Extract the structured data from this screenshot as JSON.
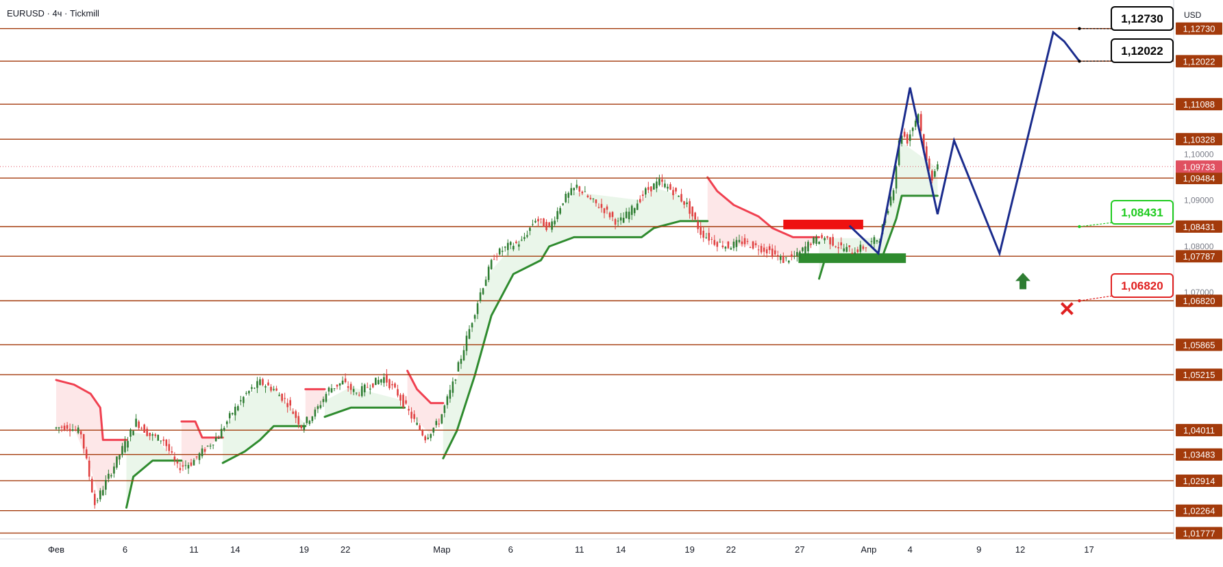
{
  "header": {
    "title": "EURUSD · 4ч · Tickmill"
  },
  "currency": "USD",
  "colors": {
    "level_line": "#a33a0b",
    "level_tag": "#a33a0b",
    "bull_candle": "#2e7d32",
    "bear_candle": "#e04040",
    "supertrend_up": "#2e8b2e",
    "supertrend_down": "#f04050",
    "up_fill": "#e8f5e8",
    "down_fill": "#fde4e6",
    "forecast": "#1a2b8c",
    "current_price_tag": "#e05060",
    "target_green": "#1ecb1e",
    "target_red": "#e02020",
    "arrow_up": "#2e7d32",
    "resistance_zone": "#ee1111",
    "support_zone": "#2e8b2e"
  },
  "chart_data": {
    "type": "candlestick",
    "symbol": "EURUSD",
    "timeframe": "4ч",
    "broker": "Tickmill",
    "ylim": [
      1.0165,
      1.1335
    ],
    "y_ticks": [
      "1,07000",
      "1,08000",
      "1,09000",
      "1,10000"
    ],
    "x_ticks": [
      {
        "label": "Фев",
        "day": 0
      },
      {
        "label": "6",
        "day": 5
      },
      {
        "label": "11",
        "day": 10
      },
      {
        "label": "14",
        "day": 13
      },
      {
        "label": "19",
        "day": 18
      },
      {
        "label": "22",
        "day": 21
      },
      {
        "label": "Мар",
        "day": 28
      },
      {
        "label": "6",
        "day": 33
      },
      {
        "label": "11",
        "day": 38
      },
      {
        "label": "14",
        "day": 41
      },
      {
        "label": "19",
        "day": 46
      },
      {
        "label": "22",
        "day": 49
      },
      {
        "label": "27",
        "day": 54
      },
      {
        "label": "Апр",
        "day": 59
      },
      {
        "label": "4",
        "day": 62
      },
      {
        "label": "9",
        "day": 67
      },
      {
        "label": "12",
        "day": 70
      },
      {
        "label": "17",
        "day": 75
      }
    ],
    "levels": [
      "1,12730",
      "1,12022",
      "1,11088",
      "1,10328",
      "1,09484",
      "1,08431",
      "1,07787",
      "1,06820",
      "1,05865",
      "1,05215",
      "1,04011",
      "1,03483",
      "1,02914",
      "1,02264",
      "1,01777"
    ],
    "current_price": "1,09733",
    "close_path": [
      [
        0,
        1.0405
      ],
      [
        1,
        1.041
      ],
      [
        2,
        1.0395
      ],
      [
        3,
        1.024
      ],
      [
        4,
        1.03
      ],
      [
        5,
        1.036
      ],
      [
        6,
        1.042
      ],
      [
        7,
        1.039
      ],
      [
        8,
        1.038
      ],
      [
        9,
        1.032
      ],
      [
        10,
        1.033
      ],
      [
        11,
        1.036
      ],
      [
        12,
        1.039
      ],
      [
        13,
        1.044
      ],
      [
        14,
        1.048
      ],
      [
        15,
        1.0505
      ],
      [
        16,
        1.049
      ],
      [
        17,
        1.046
      ],
      [
        18,
        1.041
      ],
      [
        19,
        1.044
      ],
      [
        20,
        1.049
      ],
      [
        21,
        1.0505
      ],
      [
        22,
        1.048
      ],
      [
        23,
        1.05
      ],
      [
        24,
        1.0515
      ],
      [
        25,
        1.048
      ],
      [
        26,
        1.043
      ],
      [
        27,
        1.0385
      ],
      [
        28,
        1.042
      ],
      [
        29,
        1.05
      ],
      [
        30,
        1.06
      ],
      [
        31,
        1.07
      ],
      [
        32,
        1.078
      ],
      [
        33,
        1.08
      ],
      [
        34,
        1.081
      ],
      [
        35,
        1.086
      ],
      [
        36,
        1.084
      ],
      [
        37,
        1.09
      ],
      [
        38,
        1.093
      ],
      [
        39,
        1.09
      ],
      [
        40,
        1.088
      ],
      [
        41,
        1.085
      ],
      [
        42,
        1.088
      ],
      [
        43,
        1.092
      ],
      [
        44,
        1.094
      ],
      [
        45,
        1.092
      ],
      [
        46,
        1.089
      ],
      [
        47,
        1.083
      ],
      [
        48,
        1.081
      ],
      [
        49,
        1.08
      ],
      [
        50,
        1.081
      ],
      [
        51,
        1.08
      ],
      [
        52,
        1.079
      ],
      [
        53,
        1.077
      ],
      [
        54,
        1.078
      ],
      [
        55,
        1.081
      ],
      [
        56,
        1.082
      ],
      [
        57,
        1.08
      ],
      [
        58,
        1.079
      ],
      [
        59,
        1.08
      ],
      [
        60,
        1.082
      ],
      [
        61,
        1.093
      ],
      [
        61.5,
        1.105
      ],
      [
        62,
        1.103
      ],
      [
        62.8,
        1.109
      ],
      [
        63.3,
        1.099
      ],
      [
        63.8,
        1.095
      ],
      [
        64.1,
        1.098
      ]
    ],
    "supertrend": [
      {
        "dir": "down",
        "points": [
          [
            0,
            1.051
          ],
          [
            1.3,
            1.05
          ],
          [
            2.5,
            1.048
          ],
          [
            3.2,
            1.045
          ],
          [
            3.4,
            1.038
          ],
          [
            5.1,
            1.038
          ]
        ]
      },
      {
        "dir": "up",
        "points": [
          [
            5.1,
            1.0233
          ],
          [
            5.6,
            1.03
          ],
          [
            7,
            1.0335
          ],
          [
            9.1,
            1.0335
          ]
        ]
      },
      {
        "dir": "down",
        "points": [
          [
            9.1,
            1.042
          ],
          [
            10.1,
            1.042
          ],
          [
            10.6,
            1.0385
          ],
          [
            12.1,
            1.0385
          ]
        ]
      },
      {
        "dir": "up",
        "points": [
          [
            12.1,
            1.033
          ],
          [
            13.7,
            1.0355
          ],
          [
            14.8,
            1.038
          ],
          [
            15.8,
            1.041
          ],
          [
            18.1,
            1.041
          ]
        ]
      },
      {
        "dir": "down",
        "points": [
          [
            18.1,
            1.049
          ],
          [
            19.5,
            1.049
          ]
        ]
      },
      {
        "dir": "up",
        "points": [
          [
            19.5,
            1.043
          ],
          [
            21.4,
            1.045
          ],
          [
            25.3,
            1.045
          ]
        ]
      },
      {
        "dir": "down",
        "points": [
          [
            25.5,
            1.053
          ],
          [
            26.2,
            1.049
          ],
          [
            27.2,
            1.046
          ],
          [
            28.1,
            1.046
          ]
        ]
      },
      {
        "dir": "up",
        "points": [
          [
            28.1,
            1.034
          ],
          [
            29.1,
            1.04
          ],
          [
            30.4,
            1.052
          ],
          [
            31.6,
            1.065
          ],
          [
            33.2,
            1.074
          ],
          [
            35.2,
            1.077
          ],
          [
            35.8,
            1.08
          ],
          [
            37.6,
            1.082
          ],
          [
            42.5,
            1.082
          ],
          [
            43.4,
            1.084
          ],
          [
            45.3,
            1.0855
          ],
          [
            47.3,
            1.0855
          ]
        ]
      },
      {
        "dir": "down",
        "points": [
          [
            47.3,
            1.095
          ],
          [
            48.0,
            1.092
          ],
          [
            49.2,
            1.089
          ],
          [
            51.0,
            1.0865
          ],
          [
            52.0,
            1.084
          ],
          [
            53.5,
            1.082
          ],
          [
            55.4,
            1.082
          ]
        ]
      },
      {
        "dir": "up",
        "points": [
          [
            55.4,
            1.073
          ],
          [
            55.8,
            1.077
          ],
          [
            59.9,
            1.077
          ],
          [
            61.0,
            1.086
          ],
          [
            61.4,
            1.091
          ],
          [
            64.0,
            1.091
          ]
        ]
      }
    ],
    "forecast_path": [
      [
        57.6,
        1.0845
      ],
      [
        59.7,
        1.0785
      ],
      [
        62.0,
        1.1145
      ],
      [
        64.0,
        1.087
      ],
      [
        65.2,
        1.103
      ],
      [
        68.5,
        1.0785
      ],
      [
        72.4,
        1.1265
      ],
      [
        73.2,
        1.1245
      ],
      [
        74.3,
        1.1202
      ]
    ],
    "target_labels": [
      {
        "text": "1,12730",
        "color": "black",
        "anchor_day": 74.3,
        "anchor_price": 1.1273
      },
      {
        "text": "1,12022",
        "color": "black",
        "anchor_day": 74.3,
        "anchor_price": 1.1202
      },
      {
        "text": "1,08431",
        "color": "green",
        "anchor_day": 74.3,
        "anchor_price": 1.0843
      },
      {
        "text": "1,06820",
        "color": "red",
        "anchor_day": 74.3,
        "anchor_price": 1.0682
      }
    ],
    "zones": [
      {
        "kind": "resistance",
        "from_day": 52.8,
        "to_day": 58.6,
        "from_price": 1.084,
        "to_price": 1.0858
      },
      {
        "kind": "support",
        "from_day": 53.9,
        "to_day": 61.7,
        "from_price": 1.0764,
        "to_price": 1.0785
      }
    ],
    "markers": [
      {
        "kind": "arrow-up",
        "day": 70.2,
        "price": 1.0725
      },
      {
        "kind": "cross",
        "day": 73.4,
        "price": 1.0665
      }
    ]
  }
}
